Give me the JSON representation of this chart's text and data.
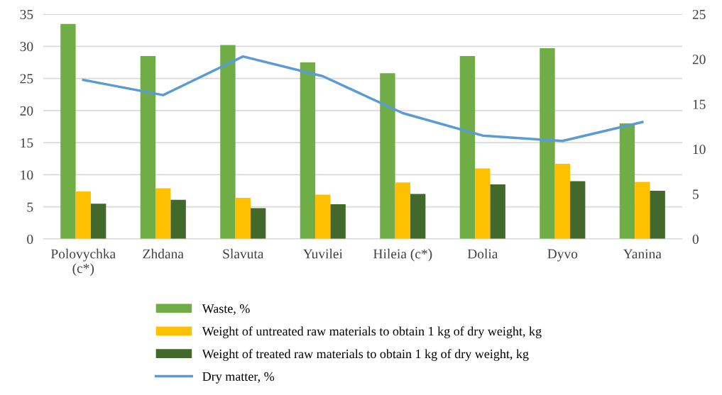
{
  "chart_data": {
    "type": "bar",
    "categories": [
      "Polovychka\n(c*)",
      "Zhdana",
      "Slavuta",
      "Yuvilei",
      "Hileia (c*)",
      "Dolia",
      "Dyvo",
      "Yanina"
    ],
    "series": [
      {
        "name": "Waste, %",
        "color": "#70ad47",
        "values": [
          33.5,
          28.5,
          30.2,
          27.5,
          25.8,
          28.5,
          29.7,
          18.0
        ]
      },
      {
        "name": "Weight of untreated raw materials to obtain 1 kg of dry weight, kg",
        "color": "#ffc000",
        "values": [
          7.4,
          7.9,
          6.4,
          6.9,
          8.8,
          11.0,
          11.7,
          8.9
        ]
      },
      {
        "name": "Weight of treated raw materials to obtain 1 kg of dry weight, kg",
        "color": "#43682b",
        "values": [
          5.5,
          6.1,
          4.8,
          5.4,
          7.0,
          8.5,
          9.0,
          7.5
        ]
      },
      {
        "name": "Dry matter, %",
        "color": "#5b9bd5",
        "type": "line",
        "axis": "y2",
        "values": [
          17.7,
          16.0,
          20.3,
          18.1,
          14.0,
          11.5,
          10.9,
          13.0
        ]
      }
    ],
    "ylim": [
      0,
      35
    ],
    "yticks": [
      0,
      5,
      10,
      15,
      20,
      25,
      30,
      35
    ],
    "y2lim": [
      0,
      25
    ],
    "y2ticks": [
      0,
      5,
      10,
      15,
      20,
      25
    ],
    "grid": "y",
    "legend": "bottom",
    "marker": "none",
    "line_style": "solid"
  }
}
